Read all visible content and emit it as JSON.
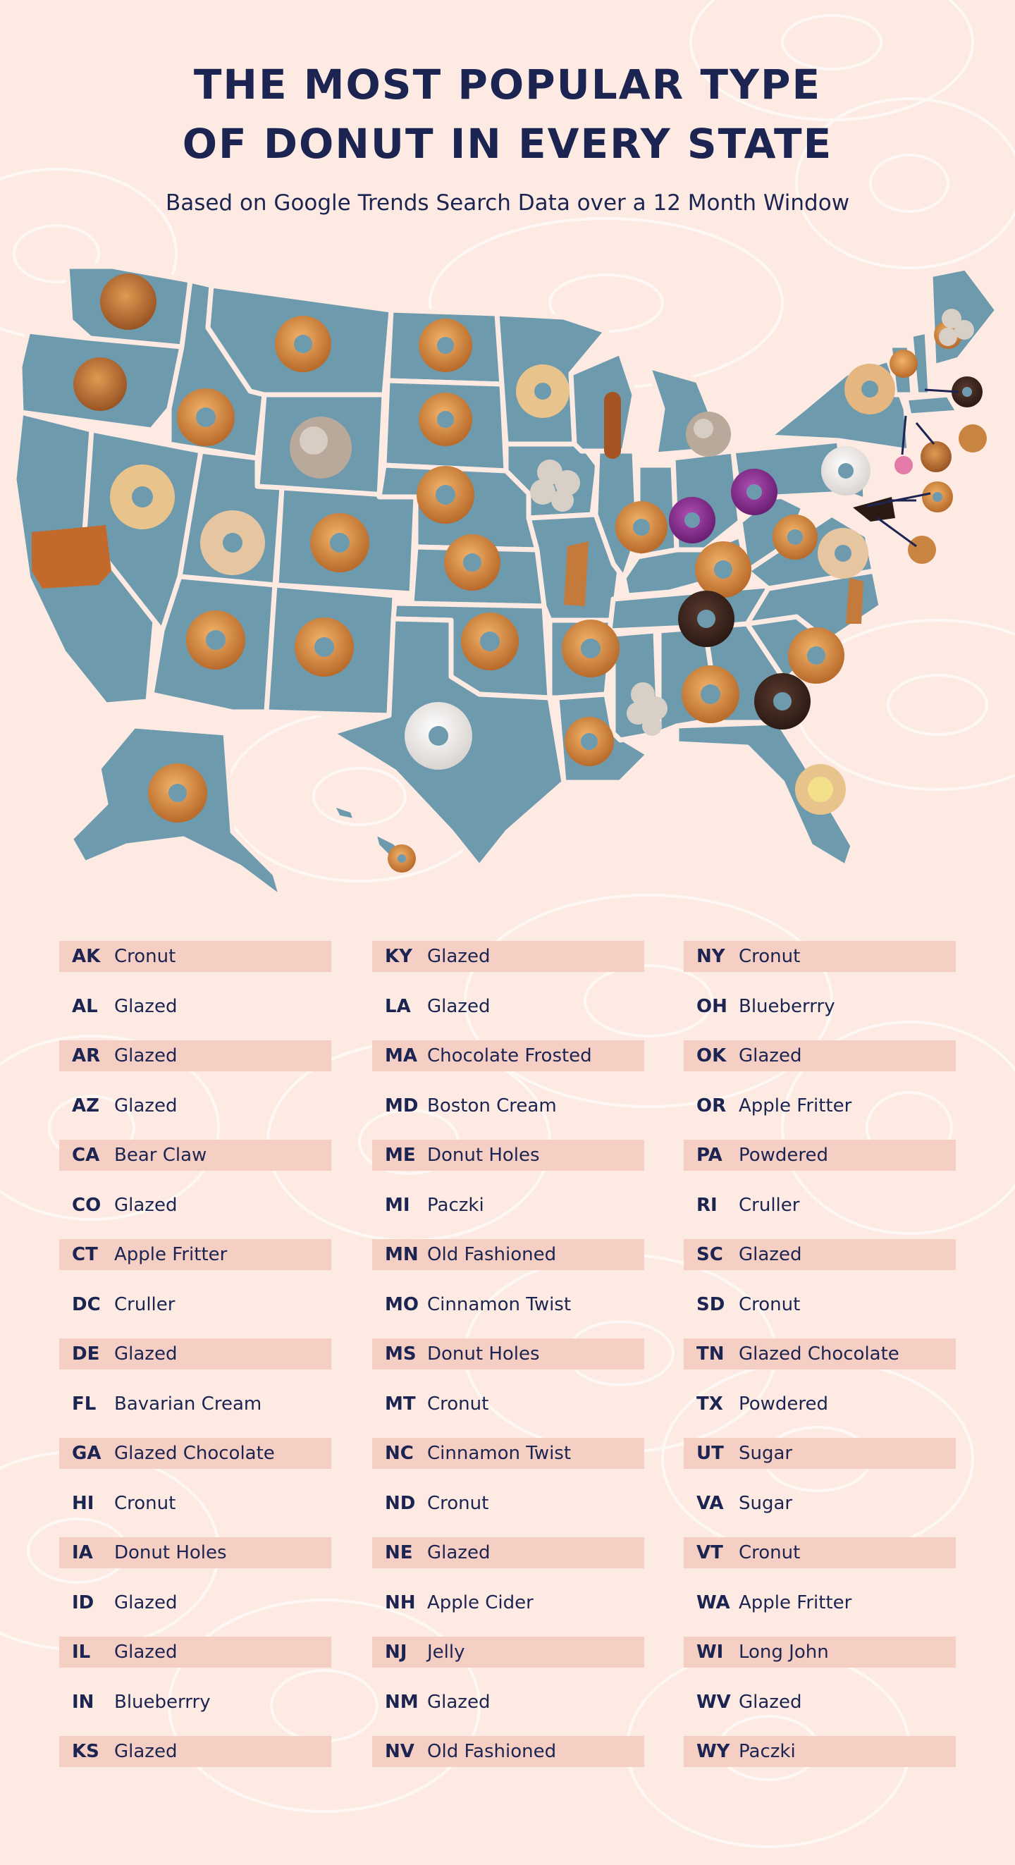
{
  "title_line1": "THE MOST POPULAR TYPE",
  "title_line2": "OF DONUT IN EVERY STATE",
  "subtitle": "Based on Google Trends Search Data over a 12 Month Window",
  "colors": {
    "background": "#fdebe3",
    "map_fill": "#6e9aae",
    "title": "#1c2451",
    "row_shade": "#f5cfc3"
  },
  "columns": [
    [
      {
        "abbr": "AK",
        "donut": "Cronut"
      },
      {
        "abbr": "AL",
        "donut": "Glazed"
      },
      {
        "abbr": "AR",
        "donut": "Glazed"
      },
      {
        "abbr": "AZ",
        "donut": "Glazed"
      },
      {
        "abbr": "CA",
        "donut": "Bear Claw"
      },
      {
        "abbr": "CO",
        "donut": "Glazed"
      },
      {
        "abbr": "CT",
        "donut": "Apple Fritter"
      },
      {
        "abbr": "DC",
        "donut": "Cruller"
      },
      {
        "abbr": "DE",
        "donut": "Glazed"
      },
      {
        "abbr": "FL",
        "donut": "Bavarian Cream"
      },
      {
        "abbr": "GA",
        "donut": "Glazed Chocolate"
      },
      {
        "abbr": "HI",
        "donut": "Cronut"
      },
      {
        "abbr": "IA",
        "donut": "Donut Holes"
      },
      {
        "abbr": "ID",
        "donut": "Glazed"
      },
      {
        "abbr": "IL",
        "donut": "Glazed"
      },
      {
        "abbr": "IN",
        "donut": "Blueberrry"
      },
      {
        "abbr": "KS",
        "donut": "Glazed"
      }
    ],
    [
      {
        "abbr": "KY",
        "donut": "Glazed"
      },
      {
        "abbr": "LA",
        "donut": "Glazed"
      },
      {
        "abbr": "MA",
        "donut": "Chocolate Frosted"
      },
      {
        "abbr": "MD",
        "donut": "Boston Cream"
      },
      {
        "abbr": "ME",
        "donut": "Donut Holes"
      },
      {
        "abbr": "MI",
        "donut": "Paczki"
      },
      {
        "abbr": "MN",
        "donut": "Old Fashioned"
      },
      {
        "abbr": "MO",
        "donut": "Cinnamon Twist"
      },
      {
        "abbr": "MS",
        "donut": "Donut Holes"
      },
      {
        "abbr": "MT",
        "donut": "Cronut"
      },
      {
        "abbr": "NC",
        "donut": "Cinnamon Twist"
      },
      {
        "abbr": "ND",
        "donut": "Cronut"
      },
      {
        "abbr": "NE",
        "donut": "Glazed"
      },
      {
        "abbr": "NH",
        "donut": "Apple Cider"
      },
      {
        "abbr": "NJ",
        "donut": "Jelly"
      },
      {
        "abbr": "NM",
        "donut": "Glazed"
      },
      {
        "abbr": "NV",
        "donut": "Old Fashioned"
      }
    ],
    [
      {
        "abbr": "NY",
        "donut": "Cronut"
      },
      {
        "abbr": "OH",
        "donut": "Blueberrry"
      },
      {
        "abbr": "OK",
        "donut": "Glazed"
      },
      {
        "abbr": "OR",
        "donut": "Apple Fritter"
      },
      {
        "abbr": "PA",
        "donut": "Powdered"
      },
      {
        "abbr": "RI",
        "donut": "Cruller"
      },
      {
        "abbr": "SC",
        "donut": "Glazed"
      },
      {
        "abbr": "SD",
        "donut": "Cronut"
      },
      {
        "abbr": "TN",
        "donut": "Glazed Chocolate"
      },
      {
        "abbr": "TX",
        "donut": "Powdered"
      },
      {
        "abbr": "UT",
        "donut": "Sugar"
      },
      {
        "abbr": "VA",
        "donut": "Sugar"
      },
      {
        "abbr": "VT",
        "donut": "Cronut"
      },
      {
        "abbr": "WA",
        "donut": "Apple Fritter"
      },
      {
        "abbr": "WI",
        "donut": "Long John"
      },
      {
        "abbr": "WV",
        "donut": "Glazed"
      },
      {
        "abbr": "WY",
        "donut": "Paczki"
      }
    ]
  ]
}
